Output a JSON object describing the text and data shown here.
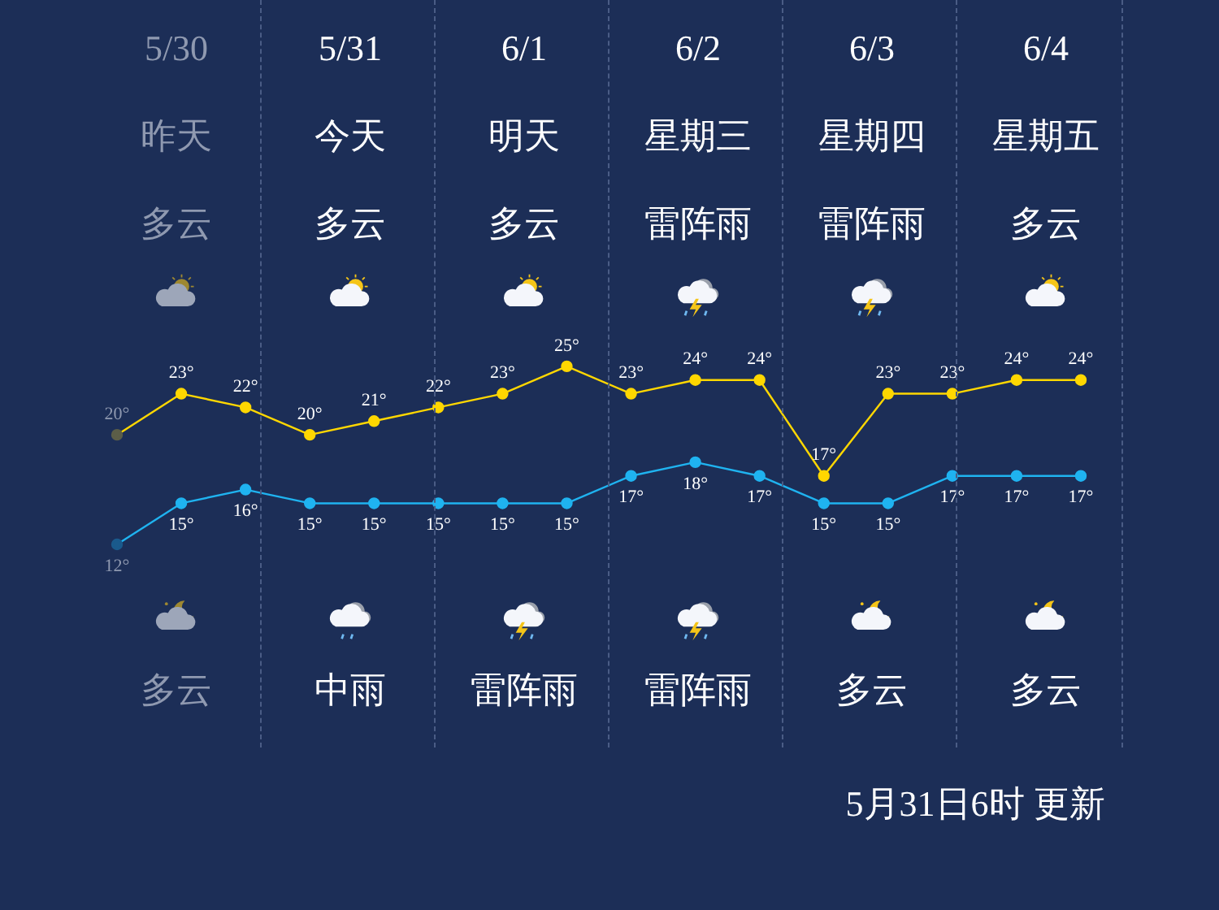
{
  "chart_data": {
    "type": "line",
    "categories": [
      null,
      null,
      null,
      null,
      null,
      null,
      null,
      null,
      null,
      null,
      null,
      null,
      null,
      null,
      null,
      null
    ],
    "series": [
      {
        "color": "#ffd700",
        "colors": [
          "#5c5e48",
          "#ffd700",
          "#ffd700",
          "#ffd700",
          "#ffd700",
          "#ffd700",
          "#ffd700",
          "#ffd700",
          "#ffd700",
          "#ffd700",
          "#ffd700",
          "#ffd700",
          "#ffd700",
          "#ffd700",
          "#ffd700",
          "#ffd700"
        ],
        "values": [
          20,
          23,
          22,
          20,
          21,
          22,
          23,
          25,
          23,
          24,
          24,
          17,
          23,
          23,
          24,
          24
        ],
        "value_labels": [
          "20°",
          "23°",
          "22°",
          "20°",
          "21°",
          "22°",
          "23°",
          "25°",
          "23°",
          "24°",
          "24°",
          "17°",
          "23°",
          "23°",
          "24°",
          "24°"
        ]
      },
      {
        "color": "#1fb3f0",
        "colors": [
          "#1a5a8c",
          "#1fb3f0",
          "#1fb3f0",
          "#1fb3f0",
          "#1fb3f0",
          "#1fb3f0",
          "#1fb3f0",
          "#1fb3f0",
          "#1fb3f0",
          "#1fb3f0",
          "#1fb3f0",
          "#1fb3f0",
          "#1fb3f0",
          "#1fb3f0",
          "#1fb3f0",
          "#1fb3f0"
        ],
        "values": [
          12,
          15,
          16,
          15,
          15,
          15,
          15,
          15,
          17,
          18,
          17,
          15,
          15,
          17,
          17,
          17
        ],
        "value_labels": [
          "12°",
          "15°",
          "16°",
          "15°",
          "15°",
          "15°",
          "15°",
          "15°",
          "17°",
          "18°",
          "17°",
          "15°",
          "15°",
          "17°",
          "17°",
          "17°"
        ]
      }
    ],
    "marker": "circle",
    "legend": false,
    "tick_labels": false,
    "annotations": [
      "5/30",
      "5/31",
      "6/1",
      "6/2",
      "6/3",
      "6/4",
      "昨天",
      "今天",
      "明天",
      "星期三",
      "星期四",
      "星期五",
      "多云",
      "多云",
      "多云",
      "雷阵雨",
      "雷阵雨",
      "多云",
      "多云",
      "中雨",
      "雷阵雨",
      "雷阵雨",
      "多云",
      "多云",
      "5月31日6时 更新"
    ]
  }
}
